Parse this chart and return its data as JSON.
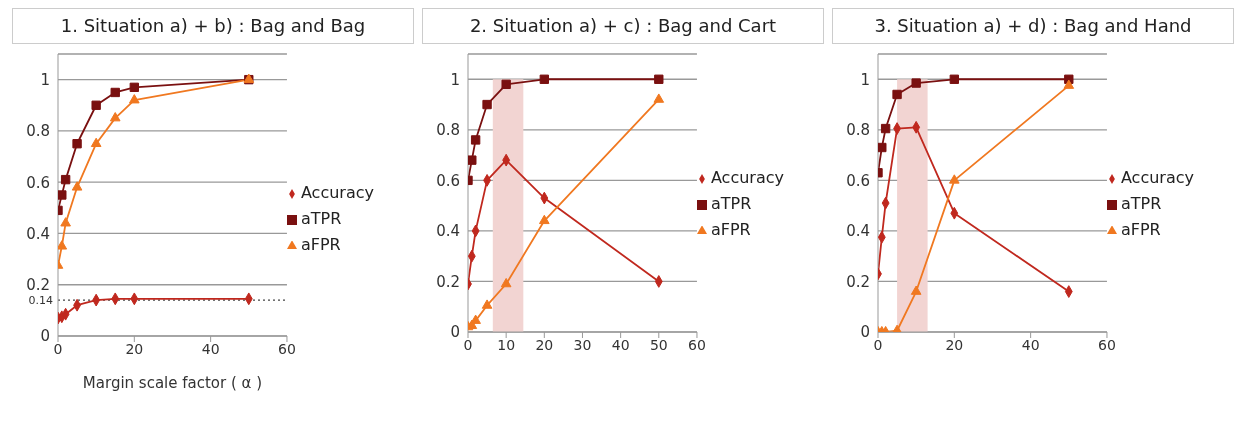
{
  "chart_data": [
    {
      "type": "line",
      "title": "1. Situation a) + b) : Bag and Bag",
      "xlabel": "Margin scale factor ( α )",
      "x": [
        0,
        1,
        2,
        5,
        10,
        15,
        20,
        50
      ],
      "series": [
        {
          "name": "Accuracy",
          "color": "#c0281e",
          "marker": "diamond",
          "values": [
            0.07,
            0.075,
            0.085,
            0.12,
            0.14,
            0.145,
            0.145,
            0.145
          ]
        },
        {
          "name": "aTPR",
          "color": "#7a1010",
          "marker": "square",
          "values": [
            0.49,
            0.55,
            0.61,
            0.75,
            0.9,
            0.95,
            0.97,
            1
          ]
        },
        {
          "name": "aFPR",
          "color": "#f07820",
          "marker": "triangle",
          "values": [
            0.275,
            0.35,
            0.44,
            0.58,
            0.75,
            0.85,
            0.92,
            1
          ]
        }
      ],
      "ref_lines": [
        {
          "axis": "y",
          "value": 0.14,
          "label": "0.14",
          "line_style": "dotted"
        }
      ],
      "xlim": [
        0,
        60
      ],
      "xticks": [
        0,
        20,
        40,
        60
      ],
      "ylim": [
        0,
        1.1
      ],
      "yticks": [
        0,
        0.2,
        0.4,
        0.6,
        0.8,
        1
      ],
      "grid": "y",
      "legend": "right",
      "line_style": "solid"
    },
    {
      "type": "line",
      "title": "2. Situation a) + c) : Bag and Cart",
      "x": [
        0,
        1,
        2,
        5,
        10,
        20,
        50
      ],
      "series": [
        {
          "name": "Accuracy",
          "color": "#c0281e",
          "marker": "diamond",
          "values": [
            0.19,
            0.3,
            0.4,
            0.6,
            0.68,
            0.53,
            0.2
          ]
        },
        {
          "name": "aTPR",
          "color": "#7a1010",
          "marker": "square",
          "values": [
            0.6,
            0.68,
            0.76,
            0.9,
            0.98,
            1,
            1
          ]
        },
        {
          "name": "aFPR",
          "color": "#f07820",
          "marker": "triangle",
          "values": [
            0.02,
            0.025,
            0.045,
            0.105,
            0.19,
            0.44,
            0.92
          ]
        }
      ],
      "bands": [
        {
          "axis": "x",
          "from": 6.5,
          "to": 14.5,
          "color": "#f2d4d2"
        }
      ],
      "xlim": [
        0,
        60
      ],
      "xticks": [
        0,
        10,
        20,
        30,
        40,
        50,
        60
      ],
      "ylim": [
        0,
        1.1
      ],
      "yticks": [
        0,
        0.2,
        0.4,
        0.6,
        0.8,
        1
      ],
      "grid": "y",
      "legend": "right",
      "line_style": "solid"
    },
    {
      "type": "line",
      "title": "3. Situation a) + d) : Bag and Hand",
      "x": [
        0,
        1,
        2,
        5,
        10,
        20,
        50
      ],
      "series": [
        {
          "name": "Accuracy",
          "color": "#c0281e",
          "marker": "diamond",
          "values": [
            0.23,
            0.375,
            0.51,
            0.805,
            0.81,
            0.47,
            0.16
          ]
        },
        {
          "name": "aTPR",
          "color": "#7a1010",
          "marker": "square",
          "values": [
            0.63,
            0.73,
            0.805,
            0.94,
            0.985,
            1,
            1
          ]
        },
        {
          "name": "aFPR",
          "color": "#f07820",
          "marker": "triangle",
          "values": [
            0,
            0,
            0,
            0.005,
            0.16,
            0.6,
            0.975
          ]
        }
      ],
      "bands": [
        {
          "axis": "x",
          "from": 5,
          "to": 13,
          "color": "#f2d4d2"
        }
      ],
      "xlim": [
        0,
        60
      ],
      "xticks": [
        0,
        20,
        40,
        60
      ],
      "ylim": [
        0,
        1.1
      ],
      "yticks": [
        0,
        0.2,
        0.4,
        0.6,
        0.8,
        1
      ],
      "grid": "y",
      "legend": "right",
      "line_style": "solid"
    }
  ]
}
